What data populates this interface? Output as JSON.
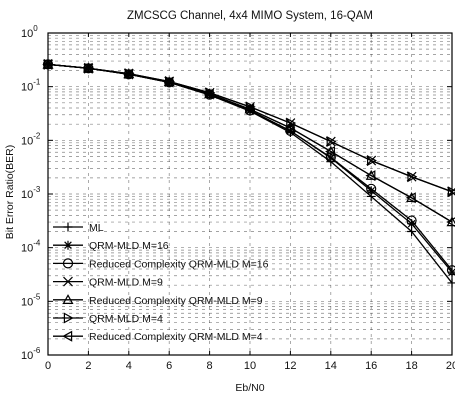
{
  "chart_data": {
    "type": "line",
    "title": "ZMCSCG Channel, 4x4 MIMO System, 16-QAM",
    "xlabel": "Eb/N0",
    "ylabel": "Bit Error Ratio(BER)",
    "xlim": [
      0,
      20
    ],
    "ylim": [
      1e-06,
      1
    ],
    "yscale": "log",
    "grid": true,
    "legend_position": "bottom-left",
    "xticks": [
      "0",
      "2",
      "4",
      "6",
      "8",
      "10",
      "12",
      "14",
      "16",
      "18",
      "20"
    ],
    "yticks": [
      {
        "base": "10",
        "exp": "0"
      },
      {
        "base": "10",
        "exp": "-1"
      },
      {
        "base": "10",
        "exp": "-2"
      },
      {
        "base": "10",
        "exp": "-3"
      },
      {
        "base": "10",
        "exp": "-4"
      },
      {
        "base": "10",
        "exp": "-5"
      },
      {
        "base": "10",
        "exp": "-6"
      }
    ],
    "x": [
      0,
      2,
      4,
      6,
      8,
      10,
      12,
      14,
      16,
      18,
      20
    ],
    "series": [
      {
        "name": "ML",
        "marker": "plus",
        "values": [
          0.26,
          0.22,
          0.17,
          0.12,
          0.07,
          0.035,
          0.014,
          0.004,
          0.0009,
          0.0002,
          2.2e-05
        ]
      },
      {
        "name": "QRM-MLD M=16",
        "marker": "star",
        "values": [
          0.26,
          0.22,
          0.17,
          0.12,
          0.071,
          0.036,
          0.015,
          0.0047,
          0.00115,
          0.00028,
          3.5e-05
        ]
      },
      {
        "name": "Reduced Complexity QRM-MLD M=16",
        "marker": "circle",
        "values": [
          0.26,
          0.22,
          0.17,
          0.12,
          0.071,
          0.036,
          0.015,
          0.0048,
          0.00125,
          0.00032,
          3.8e-05
        ]
      },
      {
        "name": "QRM-MLD M=9",
        "marker": "x",
        "values": [
          0.26,
          0.22,
          0.175,
          0.125,
          0.077,
          0.042,
          0.021,
          0.0095,
          0.0042,
          0.0021,
          0.0011
        ]
      },
      {
        "name": "Reduced Complexity QRM-MLD M=9",
        "marker": "triangle-up",
        "values": [
          0.26,
          0.22,
          0.172,
          0.122,
          0.073,
          0.038,
          0.017,
          0.0062,
          0.0022,
          0.00085,
          0.0003
        ]
      },
      {
        "name": "QRM-MLD M=4",
        "marker": "triangle-right",
        "values": [
          0.26,
          0.22,
          0.175,
          0.125,
          0.077,
          0.042,
          0.021,
          0.0095,
          0.0042,
          0.0021,
          0.0011
        ]
      },
      {
        "name": "Reduced Complexity QRM-MLD M=4",
        "marker": "triangle-left",
        "values": [
          0.26,
          0.22,
          0.172,
          0.122,
          0.073,
          0.038,
          0.017,
          0.0062,
          0.0022,
          0.00085,
          0.0003
        ]
      }
    ]
  }
}
